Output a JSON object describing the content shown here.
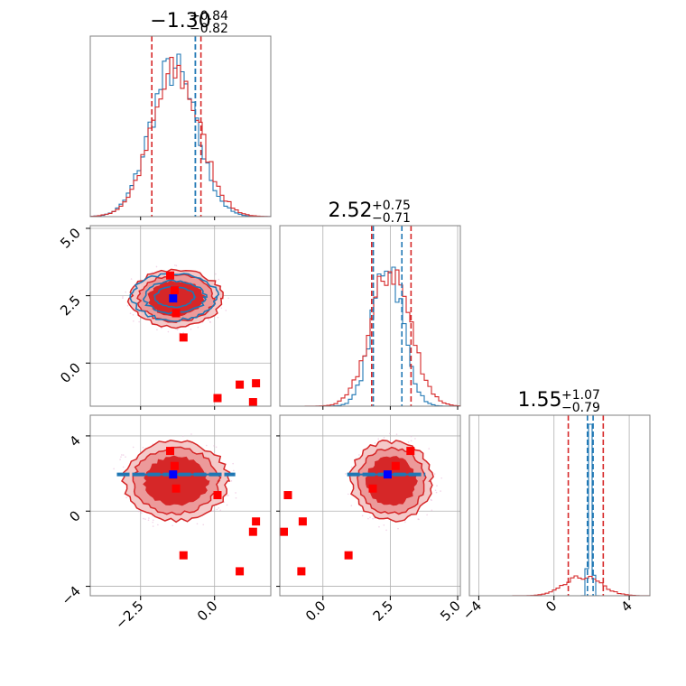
{
  "colors": {
    "red": "#d62728",
    "blue": "#1f77b4",
    "marker_red": "#ff0000",
    "marker_blue": "#0000ff",
    "grid": "#b0b0b0"
  },
  "chart_data": {
    "type": "corner",
    "parameters": [
      {
        "median": "−1.30",
        "plus": "+0.84",
        "minus": "−0.82",
        "range": [
          -4.2,
          1.9
        ],
        "red_quantiles": [
          -2.12,
          -1.3,
          -0.46
        ],
        "blue_quantiles": [
          -0.65,
          -0.65
        ]
      },
      {
        "median": "2.52",
        "plus": "+0.75",
        "minus": "−0.71",
        "range": [
          -1.6,
          5.1
        ],
        "red_quantiles": [
          1.81,
          2.52,
          3.27
        ],
        "blue_quantiles": [
          1.87,
          2.93
        ]
      },
      {
        "median": "1.55",
        "plus": "+1.07",
        "minus": "−0.79",
        "range": [
          -4.5,
          5.1
        ],
        "red_quantiles": [
          0.76,
          1.55,
          2.62
        ],
        "blue_quantiles": [
          1.78,
          2.08
        ]
      }
    ],
    "ticks": {
      "p0": {
        "values": [
          -2.5,
          0.0
        ],
        "labels": [
          "−2.5",
          "0.0"
        ]
      },
      "p1": {
        "values": [
          0.0,
          2.5,
          5.0
        ],
        "labels": [
          "0.0",
          "2.5",
          "5.0"
        ]
      },
      "p2": {
        "values": [
          -4,
          0,
          4
        ],
        "labels": [
          "−4",
          "0",
          "4"
        ]
      }
    },
    "hist_red": [
      {
        "x": -1.3,
        "sigma": 0.82
      },
      {
        "x": 2.52,
        "sigma": 0.73
      },
      {
        "x": 1.55,
        "sigma": 0.95
      }
    ],
    "hist_blue": [
      {
        "x": -1.4,
        "sigma": 0.78
      },
      {
        "x": 2.4,
        "sigma": 0.55
      },
      {
        "x": 1.93,
        "sigma": 0.1
      }
    ],
    "markers_red": [
      {
        "p0": -1.5,
        "p1": 3.25,
        "p2": 3.2
      },
      {
        "p0": -1.35,
        "p1": 2.7,
        "p2": 2.4
      },
      {
        "p0": -1.3,
        "p1": 1.85,
        "p2": 1.2
      },
      {
        "p0": -1.05,
        "p1": 0.95,
        "p2": -2.35
      },
      {
        "p0": 0.1,
        "p1": -1.3,
        "p2": 0.85
      },
      {
        "p0": 0.85,
        "p1": -0.8,
        "p2": -3.2
      },
      {
        "p0": 1.3,
        "p1": -1.45,
        "p2": -1.1
      },
      {
        "p0": 1.4,
        "p1": -0.75,
        "p2": -0.55
      }
    ],
    "marker_blue": {
      "p0": -1.4,
      "p1": 2.4,
      "p2": 1.95
    },
    "contours_red": [
      {
        "pair": [
          0,
          1
        ],
        "center": [
          -1.3,
          2.4
        ],
        "rx": 1.55,
        "ry": 1.05
      },
      {
        "pair": [
          0,
          2
        ],
        "center": [
          -1.3,
          1.6
        ],
        "rx": 1.75,
        "ry": 2.1
      },
      {
        "pair": [
          1,
          2
        ],
        "center": [
          2.55,
          1.6
        ],
        "rx": 1.5,
        "ry": 2.1
      }
    ],
    "contours_blue": [
      {
        "pair": [
          0,
          1
        ],
        "center": [
          -1.35,
          2.45
        ],
        "rx": 1.45,
        "ry": 0.85
      },
      {
        "pair": [
          0,
          2
        ],
        "center": [
          -1.3,
          1.95
        ],
        "rx": 2.0,
        "ry": 0.15
      },
      {
        "pair": [
          1,
          2
        ],
        "center": [
          2.35,
          1.95
        ],
        "rx": 1.45,
        "ry": 0.15
      }
    ]
  }
}
